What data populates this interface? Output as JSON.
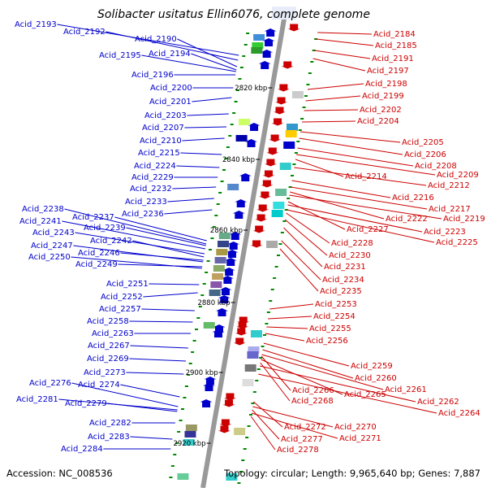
{
  "title": "Solibacter usitatus Ellin6076, complete genome",
  "accession": "Accession: NC_008536",
  "topology": "Topology: circular; Length: 9,965,640 bp; Genes: 7,887",
  "colors": {
    "forward": "#0000cc",
    "reverse": "#cc0000",
    "backbone": "#999999",
    "marker": "#008800"
  },
  "kbp_ticks": [
    "2820 kbp",
    "2840 kbp",
    "2860 kbp",
    "2880 kbp",
    "2900 kbp",
    "2920 kbp"
  ],
  "forward_labels": [
    "Acid_2193",
    "Acid_2192",
    "Acid_2190",
    "Acid_2195",
    "Acid_2194",
    "Acid_2196",
    "Acid_2200",
    "Acid_2201",
    "Acid_2203",
    "Acid_2207",
    "Acid_2210",
    "Acid_2215",
    "Acid_2224",
    "Acid_2229",
    "Acid_2232",
    "Acid_2233",
    "Acid_2236",
    "Acid_2238",
    "Acid_2237",
    "Acid_2241",
    "Acid_2239",
    "Acid_2243",
    "Acid_2242",
    "Acid_2247",
    "Acid_2246",
    "Acid_2250",
    "Acid_2249",
    "Acid_2251",
    "Acid_2252",
    "Acid_2257",
    "Acid_2258",
    "Acid_2263",
    "Acid_2267",
    "Acid_2269",
    "Acid_2273",
    "Acid_2276",
    "Acid_2274",
    "Acid_2281",
    "Acid_2279",
    "Acid_2282",
    "Acid_2283",
    "Acid_2284"
  ],
  "reverse_labels": [
    "Acid_2184",
    "Acid_2185",
    "Acid_2191",
    "Acid_2197",
    "Acid_2198",
    "Acid_2199",
    "Acid_2202",
    "Acid_2204",
    "Acid_2205",
    "Acid_2206",
    "Acid_2208",
    "Acid_2214",
    "Acid_2209",
    "Acid_2212",
    "Acid_2216",
    "Acid_2217",
    "Acid_2222",
    "Acid_2219",
    "Acid_2227",
    "Acid_2223",
    "Acid_2228",
    "Acid_2225",
    "Acid_2230",
    "Acid_2231",
    "Acid_2234",
    "Acid_2235",
    "Acid_2253",
    "Acid_2254",
    "Acid_2255",
    "Acid_2256",
    "Acid_2259",
    "Acid_2260",
    "Acid_2261",
    "Acid_2266",
    "Acid_2265",
    "Acid_2262",
    "Acid_2268",
    "Acid_2264",
    "Acid_2272",
    "Acid_2270",
    "Acid_2277",
    "Acid_2271",
    "Acid_2278"
  ]
}
